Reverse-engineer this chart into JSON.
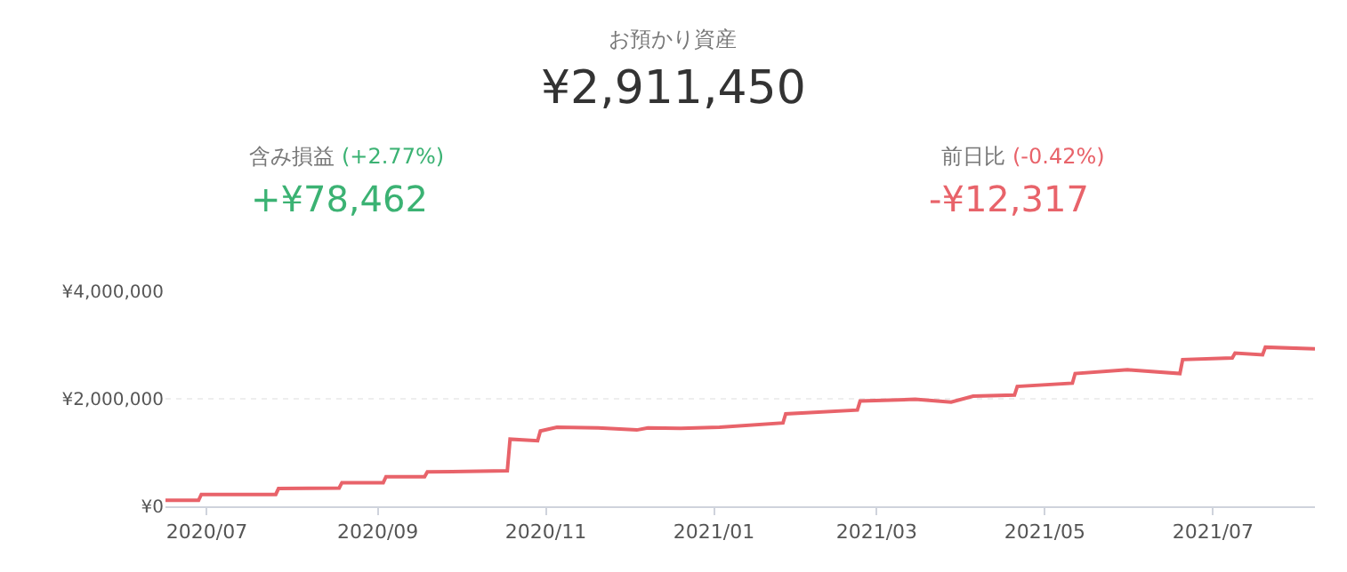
{
  "chart_data": {
    "type": "line",
    "title": "お預かり資産",
    "subtitle": "¥2,911,450",
    "annotations": [
      "含み損益",
      "(+2.77%)",
      "+¥78,462",
      "前日比",
      "(-0.42%)",
      "-¥12,317"
    ],
    "x": [
      "2020-06-16",
      "2020-06-28",
      "2020-06-29",
      "2020-07-26",
      "2020-07-27",
      "2020-08-18",
      "2020-08-19",
      "2020-09-03",
      "2020-09-04",
      "2020-09-18",
      "2020-09-19",
      "2020-10-18",
      "2020-10-19",
      "2020-10-29",
      "2020-10-30",
      "2020-11-05",
      "2020-11-20",
      "2020-12-04",
      "2020-12-08",
      "2020-12-20",
      "2021-01-03",
      "2021-01-26",
      "2021-01-27",
      "2021-02-22",
      "2021-02-23",
      "2021-03-15",
      "2021-03-28",
      "2021-04-05",
      "2021-04-20",
      "2021-04-21",
      "2021-05-11",
      "2021-05-12",
      "2021-05-31",
      "2021-06-19",
      "2021-06-20",
      "2021-07-08",
      "2021-07-09",
      "2021-07-19",
      "2021-07-20",
      "2021-08-07"
    ],
    "series": [
      {
        "color": "#e8636a",
        "values": [
          110000,
          110000,
          220000,
          220000,
          330000,
          340000,
          440000,
          440000,
          550000,
          550000,
          640000,
          660000,
          1250000,
          1220000,
          1400000,
          1470000,
          1460000,
          1420000,
          1460000,
          1450000,
          1470000,
          1550000,
          1720000,
          1790000,
          1960000,
          1990000,
          1940000,
          2050000,
          2070000,
          2230000,
          2290000,
          2470000,
          2540000,
          2470000,
          2730000,
          2760000,
          2850000,
          2820000,
          2960000,
          2930000
        ]
      }
    ],
    "xlim": [
      "2020-06-16",
      "2021-08-07"
    ],
    "xticks": [
      {
        "value": "2020-07-01",
        "label": "2020/07"
      },
      {
        "value": "2020-09-01",
        "label": "2020/09"
      },
      {
        "value": "2020-11-01",
        "label": "2020/11"
      },
      {
        "value": "2021-01-01",
        "label": "2021/01"
      },
      {
        "value": "2021-03-01",
        "label": "2021/03"
      },
      {
        "value": "2021-05-01",
        "label": "2021/05"
      },
      {
        "value": "2021-07-01",
        "label": "2021/07"
      }
    ],
    "ylim": [
      0,
      4000000
    ],
    "yticks": [
      {
        "value": 0,
        "label": "¥0"
      },
      {
        "value": 2000000,
        "label": "¥2,000,000"
      },
      {
        "value": 4000000,
        "label": "¥4,000,000"
      }
    ],
    "grid": "y",
    "marker": "none",
    "line_style": "solid"
  }
}
